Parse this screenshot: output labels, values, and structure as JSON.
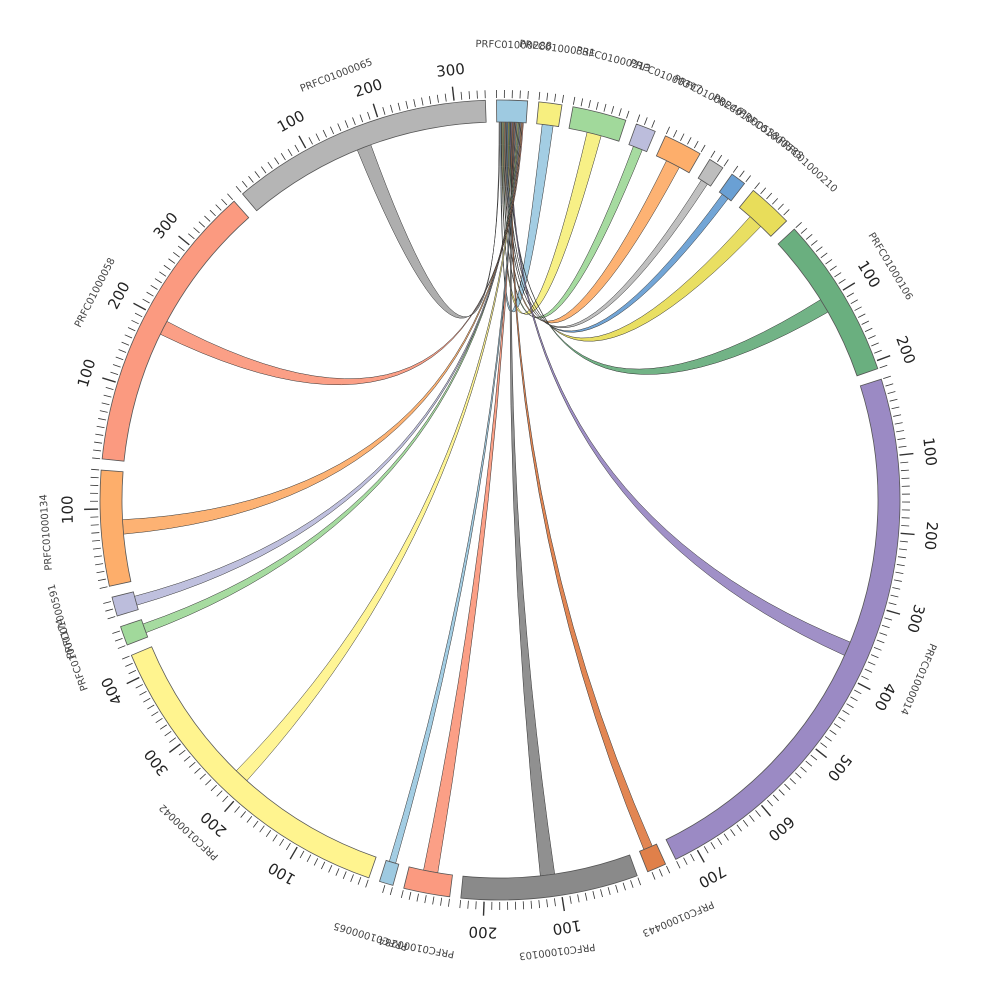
{
  "diagram": {
    "type": "circos-chord",
    "segments": [
      {
        "id": "PRFC01000288",
        "length": 40,
        "color": "#9ecae1"
      },
      {
        "id": "PRFC01000331",
        "length": 30,
        "color": "#f7ef7f"
      },
      {
        "id": "PRFC01000213",
        "length": 70,
        "color": "#a1d99b"
      },
      {
        "id": "PRFC01000397",
        "length": 26,
        "color": "#bcbddc"
      },
      {
        "id": "PRFC01000246",
        "length": 50,
        "color": "#fdae6b"
      },
      {
        "id": "PRFC01000538",
        "length": 20,
        "color": "#bdbdbd"
      },
      {
        "id": "PRFC01000588",
        "length": 20,
        "color": "#6aa0d4"
      },
      {
        "id": "PRFC01000210",
        "length": 58,
        "color": "#e8dd5a"
      },
      {
        "id": "PRFC01000106",
        "length": 210,
        "color": "#6aaf7f"
      },
      {
        "id": "PRFC01000014",
        "length": 730,
        "color": "#9b8ac4"
      },
      {
        "id": "PRFC01000443",
        "length": 25,
        "color": "#e0804a"
      },
      {
        "id": "PRFC01000103",
        "length": 230,
        "color": "#8a8a8a"
      },
      {
        "id": "PRFC01000284",
        "length": 60,
        "color": "#fb9a80"
      },
      {
        "id": "PRFC01000065",
        "length": 18,
        "color": "#9ecae1"
      },
      {
        "id": "PRFC01000042",
        "length": 430,
        "color": "#fff48f"
      },
      {
        "id": "PRFC01000174",
        "length": 25,
        "color": "#a1d99b"
      },
      {
        "id": "PRFC01000591",
        "length": 25,
        "color": "#bcbddc"
      },
      {
        "id": "PRFC01000134",
        "length": 150,
        "color": "#fdae6b"
      },
      {
        "id": "PRFC01000058",
        "length": 380,
        "color": "#fb9a80"
      },
      {
        "id": "PRFC01000065b",
        "label": "PRFC01000065",
        "length": 340,
        "color": "#b5b5b5"
      }
    ],
    "links": [
      {
        "from": "PRFC01000288",
        "to": "PRFC01000065b",
        "color": "#aaaaaa"
      },
      {
        "from": "PRFC01000288",
        "to": "PRFC01000331",
        "color": "#9ecae1"
      },
      {
        "from": "PRFC01000288",
        "to": "PRFC01000213",
        "color": "#f7ef7f"
      },
      {
        "from": "PRFC01000288",
        "to": "PRFC01000397",
        "color": "#a1d99b"
      },
      {
        "from": "PRFC01000288",
        "to": "PRFC01000246",
        "color": "#fdae6b"
      },
      {
        "from": "PRFC01000288",
        "to": "PRFC01000538",
        "color": "#bdbdbd"
      },
      {
        "from": "PRFC01000288",
        "to": "PRFC01000588",
        "color": "#6aa0d4"
      },
      {
        "from": "PRFC01000288",
        "to": "PRFC01000210",
        "color": "#e8dd5a"
      },
      {
        "from": "PRFC01000288",
        "to": "PRFC01000106",
        "color": "#6aaf7f"
      },
      {
        "from": "PRFC01000288",
        "to": "PRFC01000014",
        "color": "#9b8ac4"
      },
      {
        "from": "PRFC01000288",
        "to": "PRFC01000443",
        "color": "#e0804a"
      },
      {
        "from": "PRFC01000288",
        "to": "PRFC01000103",
        "color": "#8a8a8a"
      },
      {
        "from": "PRFC01000288",
        "to": "PRFC01000284",
        "color": "#fb9a80"
      },
      {
        "from": "PRFC01000288",
        "to": "PRFC01000065",
        "color": "#9ecae1"
      },
      {
        "from": "PRFC01000288",
        "to": "PRFC01000042",
        "color": "#fff48f"
      },
      {
        "from": "PRFC01000288",
        "to": "PRFC01000174",
        "color": "#a1d99b"
      },
      {
        "from": "PRFC01000288",
        "to": "PRFC01000591",
        "color": "#bcbddc"
      },
      {
        "from": "PRFC01000288",
        "to": "PRFC01000134",
        "color": "#fdae6b"
      },
      {
        "from": "PRFC01000288",
        "to": "PRFC01000058",
        "color": "#fb9a80"
      }
    ],
    "tick_step": 10,
    "major_tick_step": 100
  }
}
